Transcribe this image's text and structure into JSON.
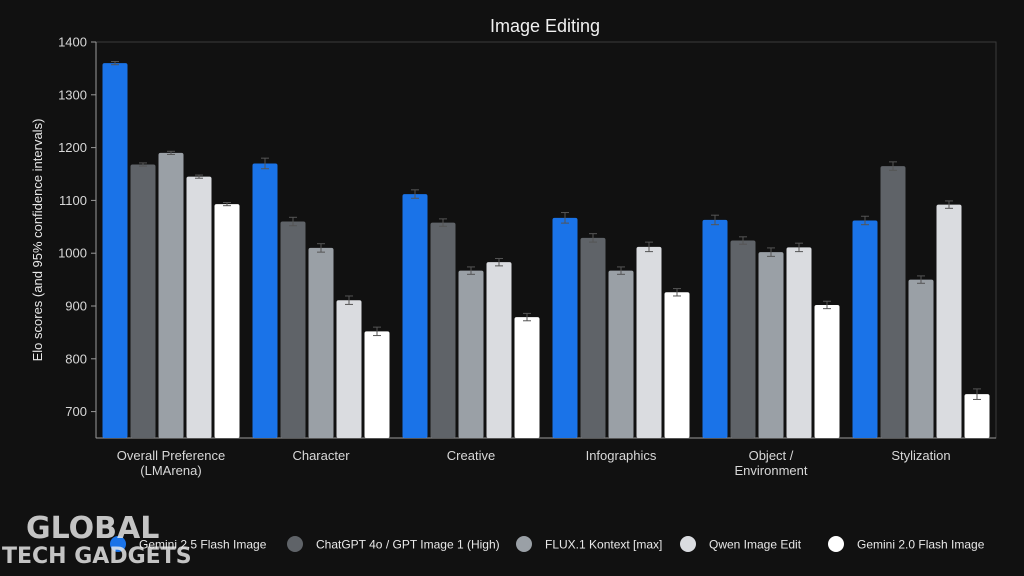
{
  "chart_data": {
    "type": "bar",
    "title": "Image Editing",
    "ylabel": "Elo scores (and 95% confidence intervals)",
    "xlabel": "",
    "ylim": [
      650,
      1400
    ],
    "yticks": [
      700,
      800,
      900,
      1000,
      1100,
      1200,
      1300,
      1400
    ],
    "grid": false,
    "legend_position": "bottom",
    "categories": [
      "Overall Preference (LMArena)",
      "Character",
      "Creative",
      "Infographics",
      "Object / Environment",
      "Stylization"
    ],
    "category_lines": [
      [
        "Overall Preference",
        "(LMArena)"
      ],
      [
        "Character"
      ],
      [
        "Creative"
      ],
      [
        "Infographics"
      ],
      [
        "Object /",
        "Environment"
      ],
      [
        "Stylization"
      ]
    ],
    "series": [
      {
        "name": "Gemini 2.5 Flash Image",
        "color": "#1a73e8",
        "values": [
          1360,
          1170,
          1112,
          1067,
          1063,
          1062
        ],
        "error": [
          3,
          10,
          8,
          10,
          9,
          8
        ]
      },
      {
        "name": "ChatGPT 4o / GPT Image 1 (High)",
        "color": "#5f6368",
        "values": [
          1168,
          1060,
          1058,
          1029,
          1024,
          1165
        ],
        "error": [
          3,
          8,
          7,
          8,
          7,
          8
        ]
      },
      {
        "name": "FLUX.1 Kontext [max]",
        "color": "#9aa0a6",
        "values": [
          1190,
          1010,
          967,
          967,
          1002,
          950
        ],
        "error": [
          3,
          8,
          7,
          7,
          8,
          7
        ]
      },
      {
        "name": "Qwen Image Edit",
        "color": "#dadce0",
        "values": [
          1145,
          911,
          983,
          1012,
          1011,
          1092
        ],
        "error": [
          3,
          8,
          7,
          9,
          8,
          7
        ]
      },
      {
        "name": "Gemini 2.0 Flash Image",
        "color": "#ffffff",
        "values": [
          1093,
          852,
          879,
          926,
          902,
          733
        ],
        "error": [
          3,
          8,
          7,
          7,
          7,
          10
        ]
      }
    ]
  },
  "watermark": {
    "line1": "GLOBAL",
    "line2": "TECH GADGETS"
  }
}
